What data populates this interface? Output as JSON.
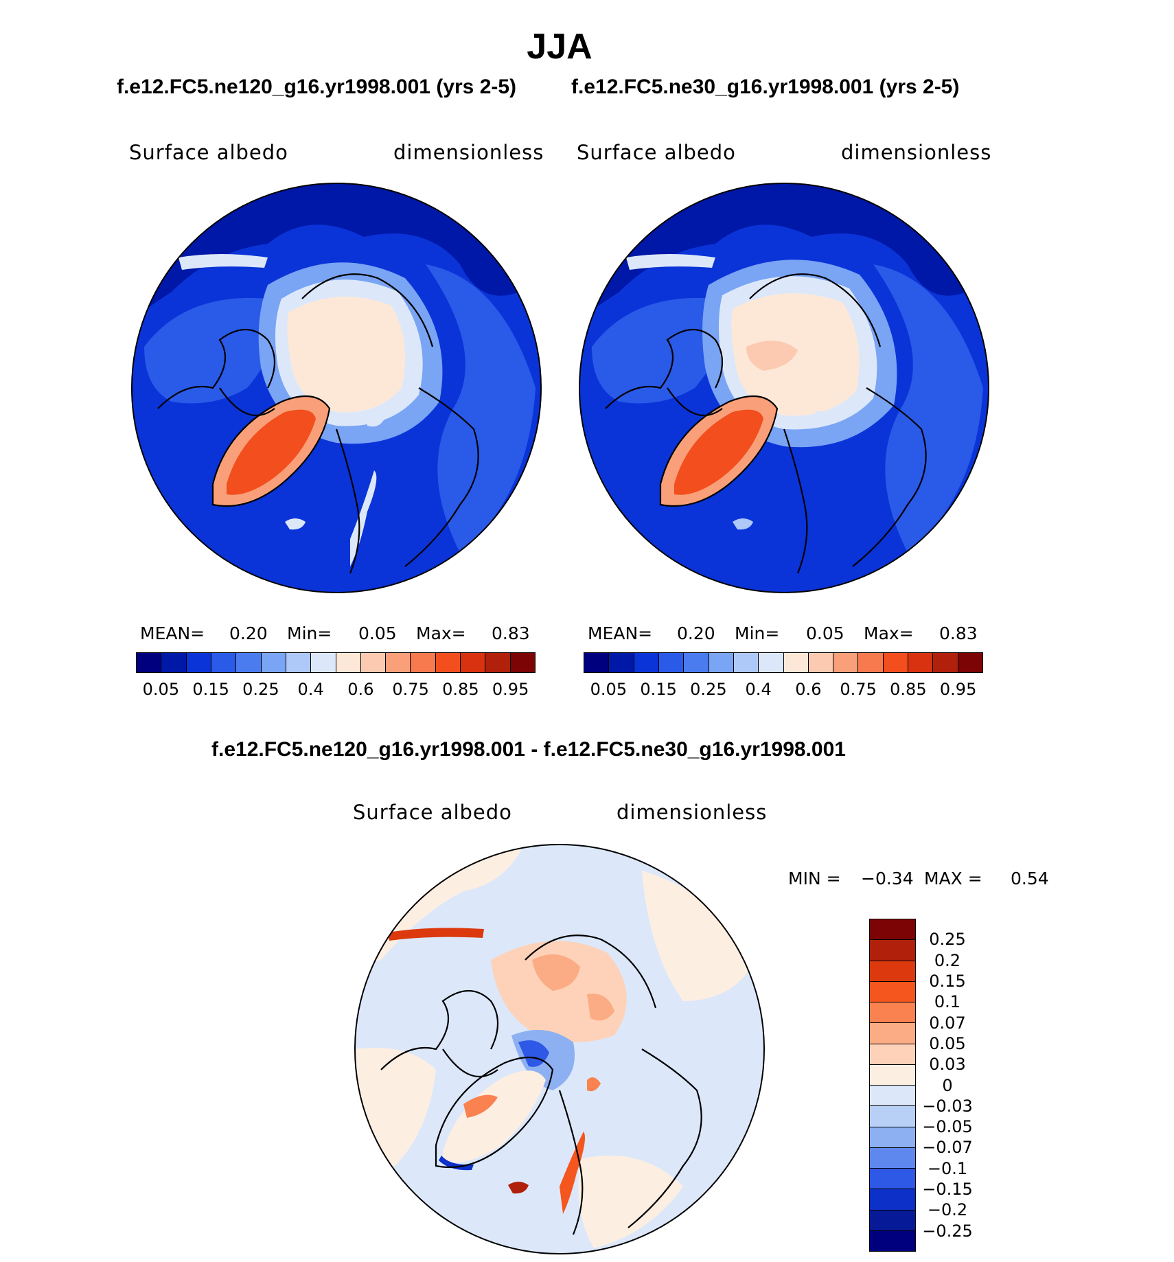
{
  "figure": {
    "title": "JJA",
    "left_case": "f.e12.FC5.ne120_g16.yr1998.001 (yrs 2-5)",
    "right_case": "f.e12.FC5.ne30_g16.yr1998.001 (yrs 2-5)",
    "diff_title": "f.e12.FC5.ne120_g16.yr1998.001 - f.e12.FC5.ne30_g16.yr1998.001"
  },
  "panels": {
    "left": {
      "variable": "Surface albedo",
      "units": "dimensionless",
      "mean_label": "MEAN=",
      "mean": "0.20",
      "min_label": "Min=",
      "min": "0.05",
      "max_label": "Max=",
      "max": "0.83"
    },
    "right": {
      "variable": "Surface albedo",
      "units": "dimensionless",
      "mean_label": "MEAN=",
      "mean": "0.20",
      "min_label": "Min=",
      "min": "0.05",
      "max_label": "Max=",
      "max": "0.83"
    },
    "diff": {
      "variable": "Surface albedo",
      "units": "dimensionless",
      "min_label": "MIN =",
      "min": "−0.34",
      "max_label": "MAX =",
      "max": "0.54"
    }
  },
  "chart_data": [
    {
      "type": "heatmap",
      "title": "Surface albedo",
      "subtitle": "f.e12.FC5.ne120_g16.yr1998.001 (yrs 2-5)",
      "units": "dimensionless",
      "projection": "north polar stereographic",
      "mean": 0.2,
      "min": 0.05,
      "max": 0.83,
      "colorbar_ticks": [
        "0.05",
        "0.15",
        "0.25",
        "0.4",
        "0.6",
        "0.75",
        "0.85",
        "0.95"
      ],
      "colors": [
        "#00007f",
        "#0018a8",
        "#0a34d8",
        "#2a5ae8",
        "#4a7cf0",
        "#7aa4f4",
        "#aec8f8",
        "#dce8fa",
        "#fde8d8",
        "#fccab0",
        "#f9a07a",
        "#f67a4e",
        "#f24e1e",
        "#d83210",
        "#b0200a",
        "#7c0404"
      ]
    },
    {
      "type": "heatmap",
      "title": "Surface albedo",
      "subtitle": "f.e12.FC5.ne30_g16.yr1998.001 (yrs 2-5)",
      "units": "dimensionless",
      "projection": "north polar stereographic",
      "mean": 0.2,
      "min": 0.05,
      "max": 0.83,
      "colorbar_ticks": [
        "0.05",
        "0.15",
        "0.25",
        "0.4",
        "0.6",
        "0.75",
        "0.85",
        "0.95"
      ],
      "colors": [
        "#00007f",
        "#0018a8",
        "#0a34d8",
        "#2a5ae8",
        "#4a7cf0",
        "#7aa4f4",
        "#aec8f8",
        "#dce8fa",
        "#fde8d8",
        "#fccab0",
        "#f9a07a",
        "#f67a4e",
        "#f24e1e",
        "#d83210",
        "#b0200a",
        "#7c0404"
      ]
    },
    {
      "type": "heatmap",
      "title": "Surface albedo",
      "subtitle": "f.e12.FC5.ne120_g16.yr1998.001 - f.e12.FC5.ne30_g16.yr1998.001",
      "units": "dimensionless",
      "projection": "north polar stereographic",
      "min": -0.34,
      "max": 0.54,
      "colorbar_labels": [
        "0.25",
        "0.2",
        "0.15",
        "0.1",
        "0.07",
        "0.05",
        "0.03",
        "0",
        "−0.03",
        "−0.05",
        "−0.07",
        "−0.1",
        "−0.15",
        "−0.2",
        "−0.25"
      ],
      "colors": [
        "#7c0404",
        "#b0200a",
        "#dc3a0e",
        "#f4561e",
        "#f98250",
        "#fbac84",
        "#fdd2b8",
        "#fdeee2",
        "#dce8fa",
        "#b8d0f6",
        "#8cb0f2",
        "#5e88ee",
        "#2e58e6",
        "#0c30c8",
        "#061a98",
        "#00007f"
      ]
    }
  ]
}
